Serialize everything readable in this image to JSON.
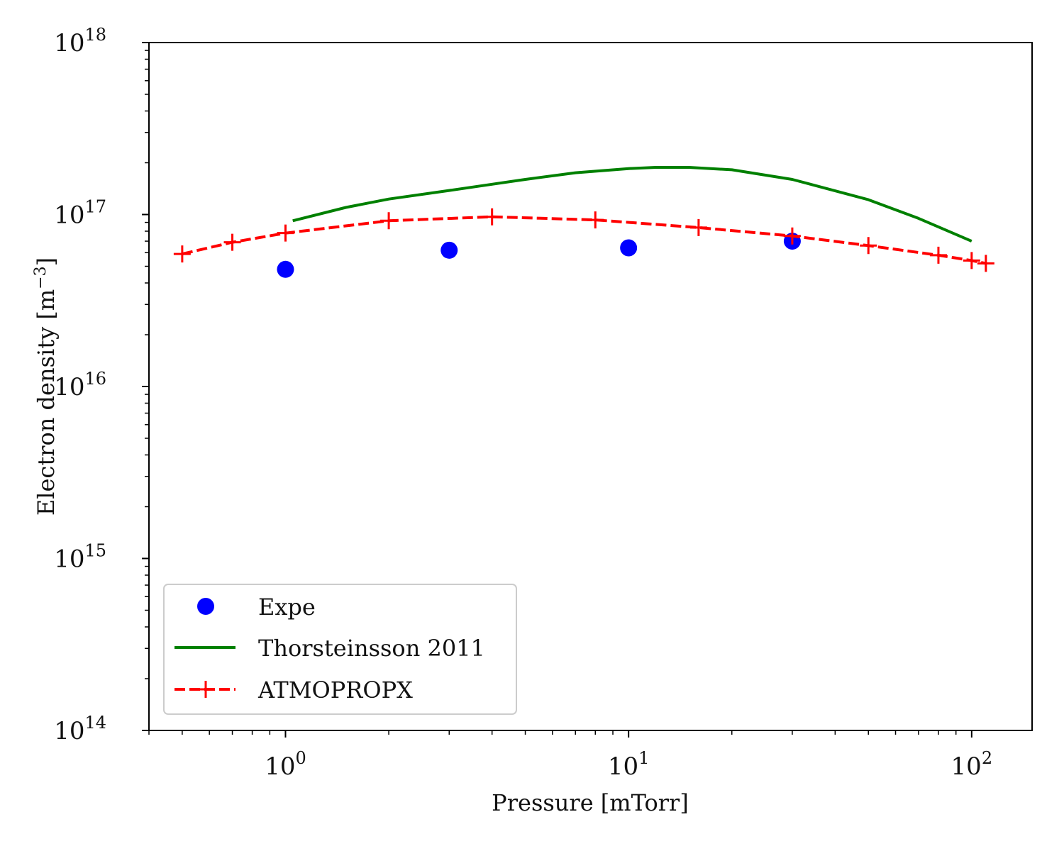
{
  "chart_data": {
    "type": "scatter",
    "title": "",
    "xlabel": "Pressure [mTorr]",
    "ylabel": "Electron density [m⁻³]",
    "ylabel_parts": {
      "base": "Electron density [m",
      "exp": "−3",
      "close": "]"
    },
    "x_scale": "log",
    "y_scale": "log",
    "xlim": [
      0.4,
      150
    ],
    "ylim": [
      100000000000000.0,
      1e+18
    ],
    "x_ticks": [
      {
        "value": 1,
        "base": "10",
        "exp": "0"
      },
      {
        "value": 10,
        "base": "10",
        "exp": "1"
      },
      {
        "value": 100,
        "base": "10",
        "exp": "2"
      }
    ],
    "y_ticks": [
      {
        "value": 100000000000000.0,
        "base": "10",
        "exp": "14"
      },
      {
        "value": 1000000000000000.0,
        "base": "10",
        "exp": "15"
      },
      {
        "value": 1e+16,
        "base": "10",
        "exp": "16"
      },
      {
        "value": 1e+17,
        "base": "10",
        "exp": "17"
      },
      {
        "value": 1e+18,
        "base": "10",
        "exp": "18"
      }
    ],
    "grid": false,
    "legend_position": "lower-left",
    "series": [
      {
        "name": "Expe",
        "style": "markers",
        "marker": "circle",
        "color": "#0000ff",
        "x": [
          1,
          3,
          10,
          30
        ],
        "y": [
          4.8e+16,
          6.2e+16,
          6.4e+16,
          7e+16
        ]
      },
      {
        "name": "Thorsteinsson 2011",
        "style": "line",
        "color": "#008000",
        "x": [
          1.05,
          1.5,
          2,
          3,
          4,
          5,
          7,
          10,
          12,
          15,
          20,
          30,
          50,
          70,
          100
        ],
        "y": [
          9.2e+16,
          1.1e+17,
          1.23e+17,
          1.38e+17,
          1.5e+17,
          1.6e+17,
          1.75e+17,
          1.85e+17,
          1.88e+17,
          1.88e+17,
          1.82e+17,
          1.6e+17,
          1.22e+17,
          9.5e+16,
          7e+16
        ]
      },
      {
        "name": "ATMOPROPX",
        "style": "dashed-line-markers",
        "marker": "plus",
        "color": "#ff0000",
        "x": [
          0.5,
          0.7,
          1,
          2,
          4,
          8,
          16,
          30,
          50,
          80,
          100,
          110
        ],
        "y": [
          5.9e+16,
          6.9e+16,
          7.8e+16,
          9.2e+16,
          9.7e+16,
          9.3e+16,
          8.4e+16,
          7.5e+16,
          6.6e+16,
          5.8e+16,
          5.4e+16,
          5.2e+16
        ]
      }
    ]
  }
}
